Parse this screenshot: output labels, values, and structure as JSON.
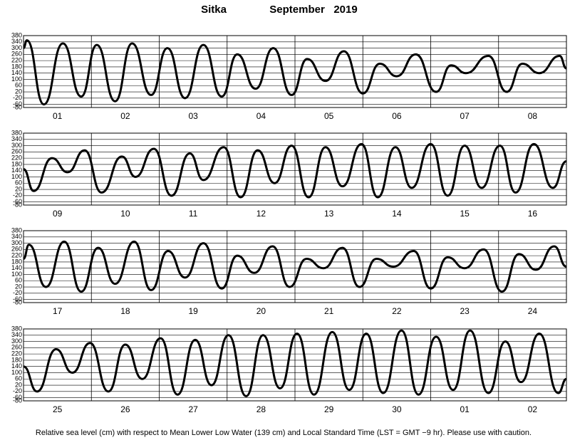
{
  "title": "Sitka",
  "subtitle": "September   2019",
  "footnote": "Relative sea level (cm) with respect to Mean Lower Low Water (139 cm) and Local Standard Time (LST = GMT −9 hr). Please use with caution.",
  "chart_data": [
    {
      "type": "line",
      "categories": [
        "01",
        "02",
        "03",
        "04",
        "05",
        "06",
        "07",
        "08"
      ],
      "xlim": [
        0,
        8
      ],
      "ylim": [
        -80,
        380
      ],
      "yticks": [
        380,
        340,
        300,
        260,
        220,
        180,
        140,
        100,
        60,
        20,
        -20,
        -60,
        -80
      ],
      "grid": true,
      "series": [
        {
          "color": "#000000",
          "x": [
            0,
            0.05,
            0.3,
            0.58,
            0.85,
            1.08,
            1.35,
            1.6,
            1.88,
            2.12,
            2.38,
            2.65,
            2.92,
            3.15,
            3.42,
            3.68,
            3.95,
            4.18,
            4.45,
            4.72,
            5.0,
            5.25,
            5.5,
            5.78,
            6.08,
            6.3,
            6.52,
            6.85,
            7.12,
            7.35,
            7.6,
            7.9,
            8.0
          ],
          "values": [
            300,
            350,
            -60,
            330,
            -10,
            320,
            -40,
            330,
            0,
            300,
            -20,
            320,
            -10,
            260,
            40,
            300,
            0,
            230,
            90,
            280,
            10,
            200,
            120,
            260,
            20,
            190,
            140,
            250,
            20,
            200,
            140,
            250,
            170
          ]
        }
      ]
    },
    {
      "type": "line",
      "categories": [
        "09",
        "10",
        "11",
        "12",
        "13",
        "14",
        "15",
        "16"
      ],
      "xlim": [
        0,
        8
      ],
      "ylim": [
        -80,
        380
      ],
      "yticks": [
        380,
        340,
        300,
        260,
        220,
        180,
        140,
        100,
        60,
        20,
        -20,
        -60,
        -80
      ],
      "grid": true,
      "series": [
        {
          "color": "#000000",
          "x": [
            0,
            0.15,
            0.42,
            0.65,
            0.9,
            1.15,
            1.45,
            1.65,
            1.92,
            2.18,
            2.45,
            2.65,
            2.95,
            3.2,
            3.45,
            3.7,
            3.95,
            4.2,
            4.45,
            4.7,
            4.98,
            5.22,
            5.48,
            5.72,
            6.0,
            6.25,
            6.5,
            6.75,
            7.02,
            7.25,
            7.52,
            7.8,
            8.0
          ],
          "values": [
            150,
            10,
            220,
            130,
            270,
            0,
            230,
            100,
            280,
            -20,
            250,
            80,
            290,
            -30,
            270,
            60,
            300,
            -30,
            290,
            40,
            310,
            -30,
            290,
            30,
            310,
            -20,
            300,
            30,
            300,
            0,
            310,
            30,
            200
          ]
        }
      ]
    },
    {
      "type": "line",
      "categories": [
        "17",
        "18",
        "19",
        "20",
        "21",
        "22",
        "23",
        "24"
      ],
      "xlim": [
        0,
        8
      ],
      "ylim": [
        -80,
        380
      ],
      "yticks": [
        380,
        340,
        300,
        260,
        220,
        180,
        140,
        100,
        60,
        20,
        -20,
        -60,
        -80
      ],
      "grid": true,
      "series": [
        {
          "color": "#000000",
          "x": [
            0,
            0.08,
            0.33,
            0.6,
            0.85,
            1.1,
            1.35,
            1.63,
            1.88,
            2.13,
            2.38,
            2.65,
            2.92,
            3.15,
            3.4,
            3.67,
            3.92,
            4.17,
            4.42,
            4.7,
            4.95,
            5.2,
            5.45,
            5.75,
            6.0,
            6.25,
            6.5,
            6.78,
            7.05,
            7.3,
            7.55,
            7.82,
            8.0
          ],
          "values": [
            200,
            290,
            20,
            310,
            -10,
            270,
            40,
            310,
            0,
            250,
            80,
            300,
            10,
            220,
            110,
            280,
            20,
            200,
            140,
            270,
            20,
            200,
            150,
            250,
            10,
            210,
            140,
            260,
            -10,
            230,
            130,
            280,
            150
          ]
        }
      ]
    },
    {
      "type": "line",
      "categories": [
        "25",
        "26",
        "27",
        "28",
        "29",
        "30",
        "01",
        "02"
      ],
      "xlim": [
        0,
        8
      ],
      "ylim": [
        -80,
        380
      ],
      "yticks": [
        380,
        340,
        300,
        260,
        220,
        180,
        140,
        100,
        60,
        20,
        -20,
        -60,
        -80
      ],
      "grid": true,
      "series": [
        {
          "color": "#000000",
          "x": [
            0,
            0.2,
            0.48,
            0.72,
            0.98,
            1.25,
            1.5,
            1.75,
            2.02,
            2.27,
            2.53,
            2.77,
            3.02,
            3.28,
            3.53,
            3.78,
            4.03,
            4.28,
            4.55,
            4.8,
            5.05,
            5.3,
            5.57,
            5.82,
            6.08,
            6.33,
            6.58,
            6.85,
            7.1,
            7.33,
            7.6,
            7.88,
            8.0
          ],
          "values": [
            140,
            -20,
            250,
            100,
            290,
            -20,
            280,
            60,
            320,
            -40,
            310,
            20,
            340,
            -50,
            340,
            0,
            350,
            -40,
            360,
            -10,
            350,
            -30,
            370,
            -40,
            330,
            -10,
            370,
            -30,
            300,
            40,
            350,
            -30,
            60
          ]
        }
      ]
    }
  ]
}
